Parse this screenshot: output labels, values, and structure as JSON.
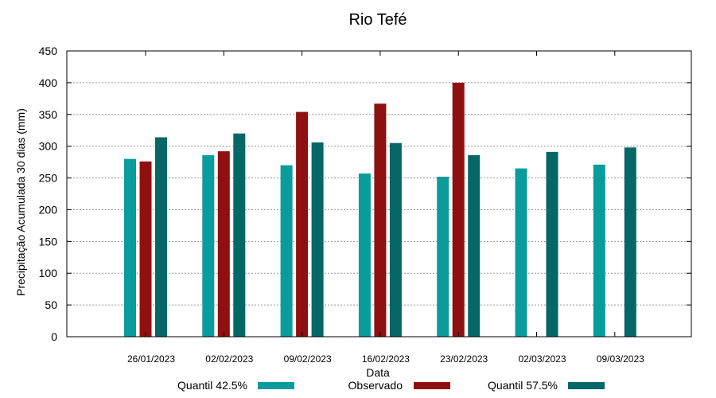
{
  "chart_data": {
    "type": "bar",
    "title": "Rio Tefé",
    "xlabel": "Data",
    "ylabel": "Precipitação Acumulada 30 dias (mm)",
    "ylim": [
      0,
      450
    ],
    "yticks": [
      0,
      50,
      100,
      150,
      200,
      250,
      300,
      350,
      400,
      450
    ],
    "grid": true,
    "legend_position": "bottom",
    "categories": [
      "26/01/2023",
      "02/02/2023",
      "09/02/2023",
      "16/02/2023",
      "23/02/2023",
      "02/03/2023",
      "09/03/2023"
    ],
    "series": [
      {
        "name": "Quantil 42.5%",
        "color": "#0a9c9c",
        "values": [
          280,
          286,
          270,
          257,
          252,
          265,
          271
        ]
      },
      {
        "name": "Observado",
        "color": "#8f1010",
        "values": [
          276,
          292,
          354,
          367,
          400,
          null,
          null
        ]
      },
      {
        "name": "Quantil 57.5%",
        "color": "#066767",
        "values": [
          314,
          320,
          306,
          305,
          286,
          291,
          298
        ]
      }
    ]
  }
}
